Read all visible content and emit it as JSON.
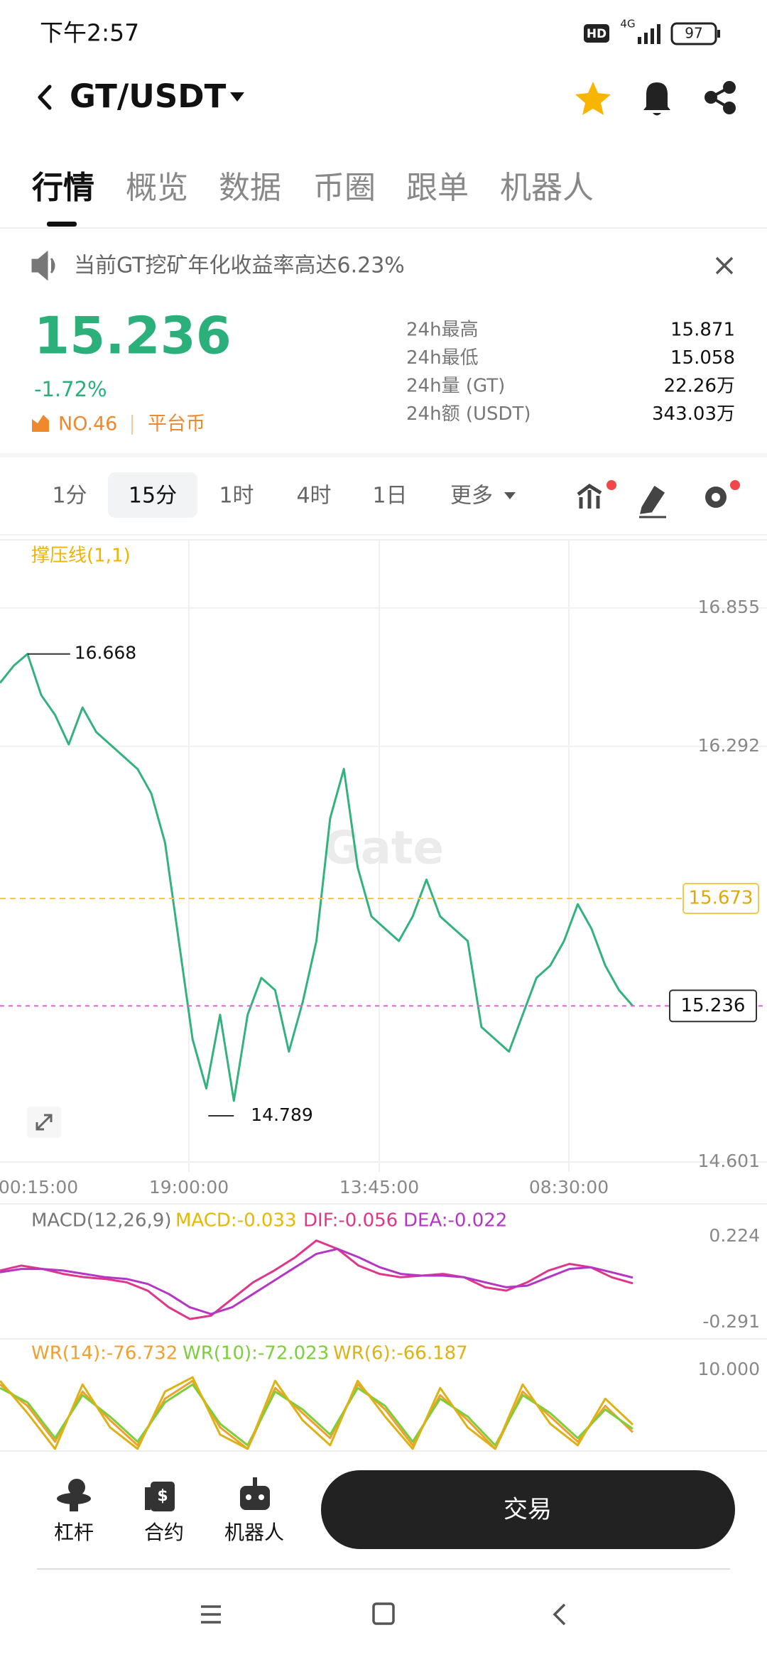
{
  "status_bar": {
    "time": "下午2:57",
    "hd": "HD",
    "network": "4G",
    "battery": "97"
  },
  "header": {
    "pair": "GT/USDT"
  },
  "tabs": [
    "行情",
    "概览",
    "数据",
    "币圈",
    "跟单",
    "机器人"
  ],
  "notice": "当前GT挖矿年化收益率高达6.23%",
  "ticker": {
    "price": "15.236",
    "change": "-1.72%",
    "rank": "NO.46",
    "tag": "平台币",
    "stats": [
      {
        "label": "24h最高",
        "value": "15.871"
      },
      {
        "label": "24h最低",
        "value": "15.058"
      },
      {
        "label": "24h量 (GT)",
        "value": "22.26万"
      },
      {
        "label": "24h额 (USDT)",
        "value": "343.03万"
      }
    ]
  },
  "intervals": [
    "1分",
    "15分",
    "1时",
    "4时",
    "1日",
    "更多"
  ],
  "chart_data": [
    {
      "type": "line",
      "title": "撑压线(1,1)",
      "watermark": "Gate",
      "x_labels": [
        "00:15:00",
        "19:00:00",
        "13:45:00",
        "08:30:00"
      ],
      "series": [
        {
          "color": "#33b27f",
          "values": [
            16.55,
            16.62,
            16.668,
            16.5,
            16.42,
            16.3,
            16.45,
            16.35,
            16.3,
            16.25,
            16.2,
            16.1,
            15.9,
            15.5,
            15.1,
            14.9,
            15.2,
            14.85,
            15.2,
            15.35,
            15.3,
            15.05,
            15.25,
            15.5,
            16.0,
            16.2,
            15.8,
            15.6,
            15.55,
            15.5,
            15.6,
            15.75,
            15.6,
            15.55,
            15.5,
            15.15,
            15.1,
            15.05,
            15.2,
            15.35,
            15.4,
            15.5,
            15.65,
            15.55,
            15.4,
            15.3,
            15.236
          ]
        }
      ],
      "ylim": [
        14.601,
        16.855
      ],
      "yticks": [
        14.601,
        16.292,
        16.855
      ],
      "grid": true,
      "high_label": 16.668,
      "low_label": 14.789,
      "resistance": 15.673,
      "current_price": 15.236
    },
    {
      "type": "line",
      "title": "MACD(12,26,9)",
      "macd_label": "MACD:-0.033",
      "series": [
        {
          "name": "DIF:-0.056",
          "color": "#e0368a",
          "values": [
            0.02,
            0.05,
            0.03,
            0.0,
            -0.02,
            -0.03,
            -0.05,
            -0.1,
            -0.2,
            -0.27,
            -0.25,
            -0.15,
            -0.05,
            0.02,
            0.1,
            0.2,
            0.15,
            0.05,
            0.0,
            -0.02,
            -0.01,
            0.0,
            -0.02,
            -0.08,
            -0.1,
            -0.05,
            0.02,
            0.06,
            0.04,
            -0.02,
            -0.056
          ]
        },
        {
          "name": "DEA:-0.022",
          "color": "#b336c4",
          "values": [
            0.01,
            0.03,
            0.03,
            0.02,
            0.0,
            -0.02,
            -0.03,
            -0.06,
            -0.12,
            -0.2,
            -0.24,
            -0.2,
            -0.12,
            -0.04,
            0.04,
            0.12,
            0.15,
            0.1,
            0.04,
            0.0,
            -0.01,
            -0.01,
            -0.02,
            -0.05,
            -0.08,
            -0.07,
            -0.02,
            0.03,
            0.04,
            0.01,
            -0.022
          ]
        }
      ],
      "ylim": [
        -0.291,
        0.224
      ],
      "yticks": [
        -0.291,
        0.224
      ]
    },
    {
      "type": "line",
      "series": [
        {
          "name": "WR(14):-76.732",
          "color": "#f0a030",
          "values": [
            -10,
            -40,
            -90,
            -20,
            -60,
            -95,
            -30,
            -5,
            -70,
            -100,
            -15,
            -50,
            -85,
            -10,
            -45,
            -95,
            -25,
            -60,
            -100,
            -20,
            -55,
            -90,
            -40,
            -76.732
          ]
        },
        {
          "name": "WR(10):-72.023",
          "color": "#7ccf3a",
          "values": [
            -15,
            -35,
            -85,
            -25,
            -55,
            -90,
            -35,
            -10,
            -65,
            -95,
            -20,
            -45,
            -80,
            -15,
            -40,
            -90,
            -30,
            -55,
            -95,
            -25,
            -50,
            -85,
            -45,
            -72.023
          ]
        },
        {
          "name": "WR(6):-66.187",
          "color": "#dcb214",
          "values": [
            -5,
            -50,
            -100,
            -10,
            -70,
            -100,
            -20,
            0,
            -80,
            -100,
            -5,
            -60,
            -95,
            -5,
            -55,
            -100,
            -15,
            -70,
            -100,
            -10,
            -65,
            -95,
            -30,
            -66.187
          ]
        }
      ],
      "ylim": [
        -110,
        10
      ],
      "yticks": [
        {
          "value": 10,
          "label": "10.000"
        }
      ]
    }
  ],
  "bottom_bar": {
    "items": [
      "杠杆",
      "合约",
      "机器人"
    ],
    "trade": "交易"
  }
}
